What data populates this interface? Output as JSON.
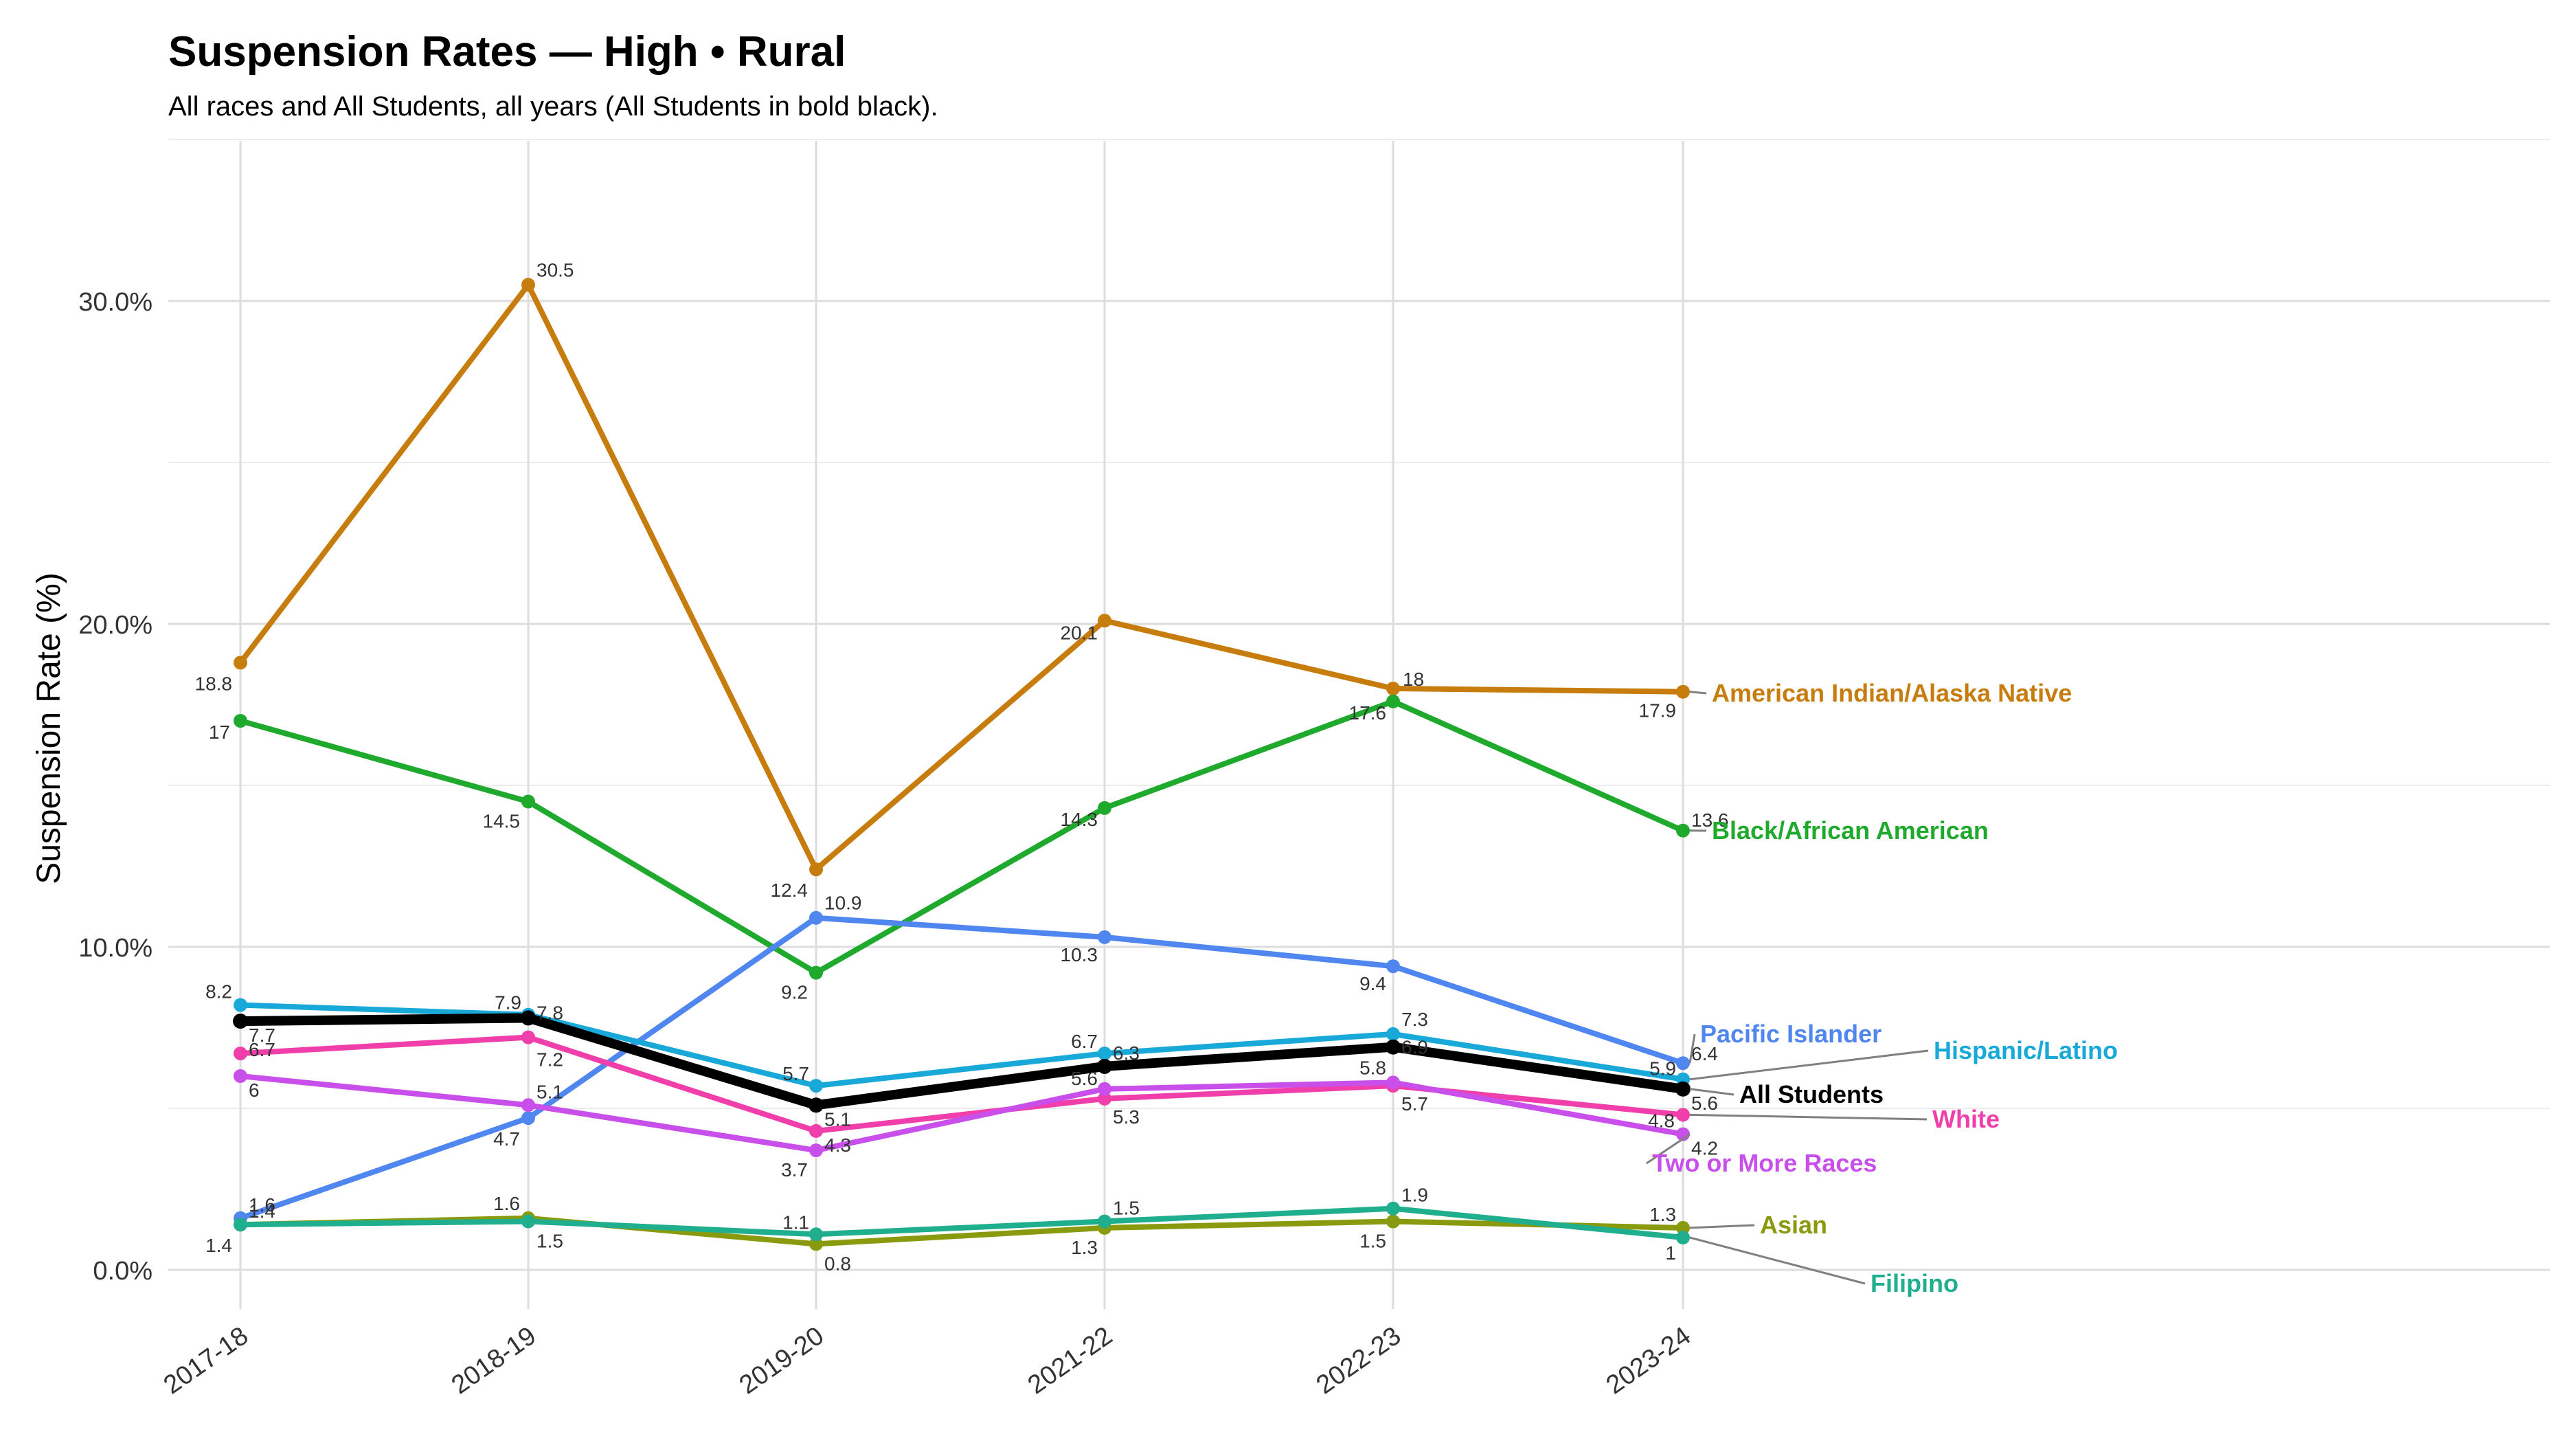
{
  "chart_data": {
    "type": "line",
    "title": "Suspension Rates — High • Rural",
    "subtitle": "All races and All Students, all years (All Students in bold black).",
    "xlabel": "",
    "ylabel": "Suspension Rate (%)",
    "categories": [
      "2017-18",
      "2018-19",
      "2019-20",
      "2021-22",
      "2022-23",
      "2023-24"
    ],
    "ylim": [
      -0.5,
      35
    ],
    "yticks": [
      0,
      10,
      20,
      30
    ],
    "ytick_labels": [
      "0.0%",
      "10.0%",
      "20.0%",
      "30.0%"
    ],
    "grid": true,
    "legend": "direct labels at right end of lines",
    "series": [
      {
        "name": "American Indian/Alaska Native",
        "color": "#C77C0E",
        "bold": false,
        "values": [
          18.8,
          30.5,
          12.4,
          20.1,
          18,
          17.9
        ],
        "labels": [
          "18.8",
          "30.5",
          "12.4",
          "20.1",
          "18",
          "17.9"
        ]
      },
      {
        "name": "Black/African American",
        "color": "#1FAA2E",
        "bold": false,
        "values": [
          17,
          14.5,
          9.2,
          14.3,
          17.6,
          13.6
        ],
        "labels": [
          "17",
          "14.5",
          "9.2",
          "14.3",
          "17.6",
          "13.6"
        ]
      },
      {
        "name": "Pacific Islander",
        "color": "#4F86F0",
        "bold": false,
        "values": [
          1.6,
          4.7,
          10.9,
          10.3,
          9.4,
          6.4
        ],
        "labels": [
          "1.6",
          "4.7",
          "10.9",
          "10.3",
          "9.4",
          "6.4"
        ]
      },
      {
        "name": "Hispanic/Latino",
        "color": "#19A9D9",
        "bold": false,
        "values": [
          8.2,
          7.9,
          5.7,
          6.7,
          7.3,
          5.9
        ],
        "labels": [
          "8.2",
          "7.9",
          "5.7",
          "6.7",
          "7.3",
          "5.9"
        ]
      },
      {
        "name": "All Students",
        "color": "#000000",
        "bold": true,
        "values": [
          7.7,
          7.8,
          5.1,
          6.3,
          6.9,
          5.6
        ],
        "labels": [
          "7.7",
          "7.8",
          "5.1",
          "6.3",
          "6.9",
          "5.6"
        ]
      },
      {
        "name": "White",
        "color": "#F03FAA",
        "bold": false,
        "values": [
          6.7,
          7.2,
          4.3,
          5.3,
          5.7,
          4.8
        ],
        "labels": [
          "6.7",
          "7.2",
          "4.3",
          "5.3",
          "5.7",
          "4.8"
        ]
      },
      {
        "name": "Two or More Races",
        "color": "#C94FEA",
        "bold": false,
        "values": [
          6,
          5.1,
          3.7,
          5.6,
          5.8,
          4.2
        ],
        "labels": [
          "6",
          "5.1",
          "3.7",
          "5.6",
          "5.8",
          "4.2"
        ]
      },
      {
        "name": "Asian",
        "color": "#8A9A0E",
        "bold": false,
        "values": [
          1.4,
          1.6,
          0.8,
          1.3,
          1.5,
          1.3
        ],
        "labels": [
          "1.4",
          "1.6",
          "0.8",
          "1.3",
          "1.5",
          "1.3"
        ]
      },
      {
        "name": "Filipino",
        "color": "#1FAF8E",
        "bold": false,
        "values": [
          1.4,
          1.5,
          1.1,
          1.5,
          1.9,
          1
        ],
        "labels": [
          "1.4",
          "1.5",
          "1.1",
          "1.5",
          "1.9",
          "1"
        ]
      }
    ]
  }
}
